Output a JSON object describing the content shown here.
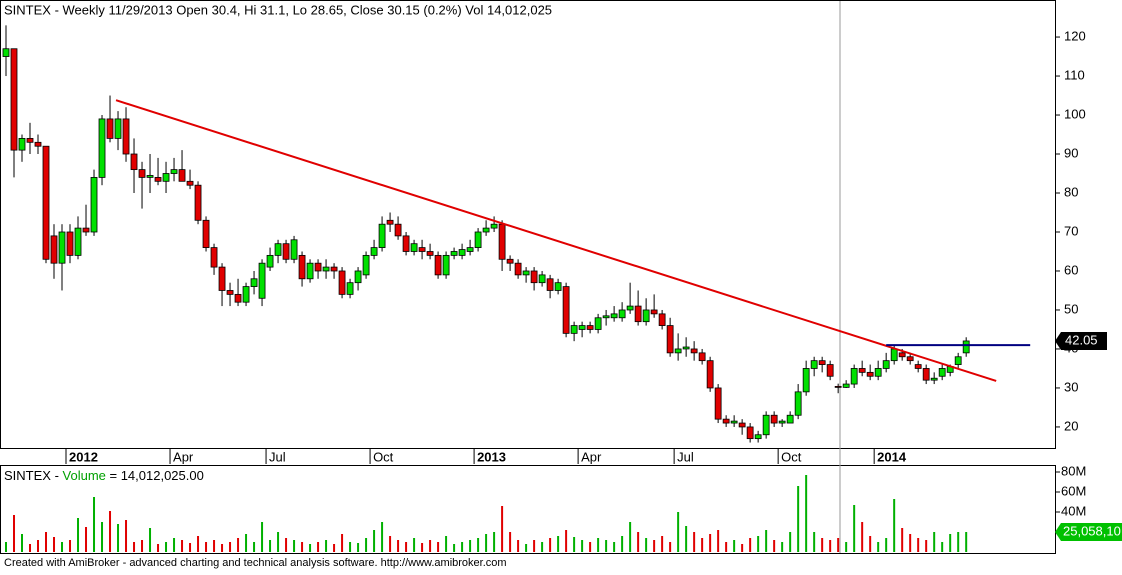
{
  "chart_data": [
    {
      "type": "candlestick",
      "title": "SINTEX - Weekly 11/29/2013 Open 30.4, Hi 31.1, Lo 28.65, Close 30.15 (0.2%) Vol 14,012,025",
      "up_color": "#00e000",
      "down_color": "#e00000",
      "open": [
        115,
        117,
        91,
        94,
        93,
        92,
        69,
        62,
        70,
        64,
        71,
        70,
        84,
        99,
        94,
        99,
        90,
        86,
        84,
        84,
        83,
        85,
        86,
        83,
        82,
        73,
        66,
        61,
        55,
        54,
        52,
        56,
        53,
        61,
        64,
        67,
        63,
        64,
        58,
        62,
        60,
        61,
        60,
        54,
        57,
        59,
        64,
        66,
        73,
        72,
        69,
        65,
        66,
        65,
        64,
        59,
        64,
        64,
        65,
        66,
        70,
        71,
        72,
        63,
        62,
        59,
        60,
        57,
        58,
        55,
        56,
        44,
        45,
        46,
        45,
        48,
        48,
        48,
        50,
        51,
        47,
        50,
        49,
        46,
        39,
        40,
        40,
        39,
        37,
        30,
        22,
        21,
        21,
        20,
        17,
        18,
        23,
        21,
        21,
        23,
        29,
        35,
        37,
        36,
        30.4,
        30.15,
        31,
        35,
        34,
        33,
        35,
        37,
        39,
        38,
        36,
        35,
        32,
        33,
        34,
        36,
        39
      ],
      "high": [
        123,
        117,
        95,
        98,
        95,
        92,
        72,
        72,
        72,
        74,
        77,
        86,
        100,
        105,
        101,
        102,
        94,
        88,
        90,
        89,
        88,
        89,
        91,
        86,
        83,
        74,
        67,
        62,
        57,
        58,
        57,
        60,
        63,
        66,
        68,
        68,
        69,
        65,
        63,
        63,
        63,
        62,
        61,
        58,
        61,
        65,
        68,
        74,
        75,
        74,
        70,
        68,
        68,
        67,
        65,
        65,
        66,
        67,
        68,
        71,
        73,
        74,
        73,
        64,
        63,
        61,
        61,
        60,
        59,
        58,
        57,
        47,
        47,
        47,
        49,
        50,
        51,
        52,
        57,
        55,
        53,
        54,
        50,
        48,
        44,
        43,
        42,
        40,
        38,
        31,
        23,
        23,
        22,
        21,
        19,
        24,
        24,
        22,
        24,
        31,
        37,
        38,
        38,
        37,
        31.1,
        32,
        36,
        37,
        36,
        37,
        39,
        41,
        40,
        39,
        37,
        36,
        34,
        36,
        36,
        39,
        43
      ],
      "low": [
        110,
        84,
        88,
        90,
        90,
        62,
        58,
        55,
        62,
        63,
        69,
        69,
        82,
        93,
        91,
        88,
        80,
        76,
        80,
        82,
        80,
        83,
        84,
        81,
        72,
        65,
        59,
        51,
        51,
        51,
        51,
        54,
        51,
        60,
        62,
        62,
        62,
        56,
        57,
        58,
        58,
        58,
        53,
        53,
        55,
        58,
        63,
        65,
        70,
        68,
        64,
        64,
        63,
        63,
        58,
        58,
        63,
        63,
        64,
        65,
        69,
        70,
        60,
        60,
        58,
        57,
        55,
        56,
        53,
        54,
        43,
        42,
        43,
        44,
        44,
        46,
        47,
        47,
        49,
        46,
        46,
        48,
        45,
        38,
        37,
        38,
        37,
        36,
        29,
        21,
        20,
        20,
        18,
        16,
        16,
        17,
        20,
        20,
        21,
        22,
        28,
        33,
        34,
        32,
        28.65,
        30,
        30,
        33,
        32,
        32,
        34,
        36,
        37,
        36,
        34,
        31,
        31,
        32,
        33,
        35,
        38
      ],
      "close": [
        117,
        91,
        94,
        93,
        92,
        63,
        62,
        70,
        64,
        71,
        70,
        84,
        99,
        94,
        99,
        90,
        86,
        84,
        84.5,
        83,
        85,
        86,
        83,
        82,
        73,
        66,
        61,
        55,
        54,
        52,
        56,
        58,
        62,
        64,
        67,
        63,
        68,
        58,
        62,
        60,
        61,
        60,
        54,
        57,
        60,
        64,
        66,
        72,
        72,
        69,
        65,
        67,
        65,
        64,
        59,
        64,
        65,
        65.5,
        66,
        70,
        71,
        72,
        63,
        62,
        59,
        60,
        57,
        59,
        55,
        57,
        44,
        46,
        46,
        45,
        48,
        48.5,
        49,
        50,
        51,
        47,
        50,
        49,
        46,
        39,
        40,
        40.5,
        39,
        37,
        30,
        22,
        21,
        21.5,
        20,
        17,
        18,
        23,
        21,
        21.5,
        23,
        29,
        35,
        37,
        36,
        33,
        30.15,
        31,
        35,
        34,
        33,
        35,
        37,
        40,
        38,
        37,
        35,
        32,
        32.5,
        35,
        35.5,
        38,
        42.05
      ],
      "xlim": [
        -0.75,
        131.1
      ],
      "ylim": [
        14.6,
        129.5
      ],
      "yticks": [
        20,
        30,
        40,
        50,
        60,
        70,
        80,
        90,
        100,
        110,
        120
      ],
      "xticks": [
        {
          "value": 8,
          "label": "2012"
        },
        {
          "value": 21,
          "label": "Apr"
        },
        {
          "value": 33,
          "label": "Jul"
        },
        {
          "value": 46,
          "label": "Oct"
        },
        {
          "value": 59,
          "label": "2013"
        },
        {
          "value": 72,
          "label": "Apr"
        },
        {
          "value": 84,
          "label": "Jul"
        },
        {
          "value": 97,
          "label": "Oct"
        },
        {
          "value": 109,
          "label": "2014"
        }
      ],
      "lines": [
        {
          "color": "#e00000",
          "x": [
            13.75,
            123.75
          ],
          "y": [
            103.8,
            31.8
          ]
        },
        {
          "color": "#000080",
          "x": [
            110,
            128
          ],
          "y": [
            41,
            41
          ]
        }
      ]
    },
    {
      "type": "volume",
      "title": [
        "SINTEX - ",
        "Volume",
        " = 14,012,025.00"
      ],
      "last_label": "25,058,10",
      "values": [
        10,
        37,
        18,
        8,
        12,
        20,
        15,
        10,
        12,
        34,
        25,
        55,
        30,
        41,
        28,
        32,
        10,
        12,
        24,
        8,
        10,
        14,
        12,
        9,
        16,
        10,
        12,
        8,
        10,
        14,
        18,
        10,
        30,
        12,
        20,
        14,
        12,
        10,
        8,
        10,
        12,
        8,
        18,
        10,
        9,
        14,
        22,
        30,
        16,
        12,
        10,
        14,
        9,
        12,
        10,
        16,
        8,
        10,
        12,
        14,
        18,
        20,
        46,
        20,
        12,
        8,
        12,
        10,
        14,
        16,
        22,
        15,
        12,
        10,
        14,
        12,
        10,
        16,
        30,
        20,
        14,
        12,
        16,
        10,
        40,
        26,
        20,
        14,
        18,
        22,
        10,
        12,
        8,
        14,
        16,
        22,
        12,
        10,
        20,
        66,
        77,
        20,
        14,
        12,
        14,
        10,
        47,
        30,
        16,
        10,
        14,
        53,
        24,
        18,
        14,
        12,
        20,
        10,
        18,
        20,
        20
      ],
      "ylim": [
        0,
        87
      ],
      "yticks": [
        {
          "value": 20,
          "label": "20M"
        },
        {
          "value": 40,
          "label": "40M"
        },
        {
          "value": 60,
          "label": "60M"
        },
        {
          "value": 80,
          "label": "80M"
        }
      ]
    }
  ],
  "footer": "Created with AmiBroker - advanced charting and technical analysis software. http://www.amibroker.com"
}
